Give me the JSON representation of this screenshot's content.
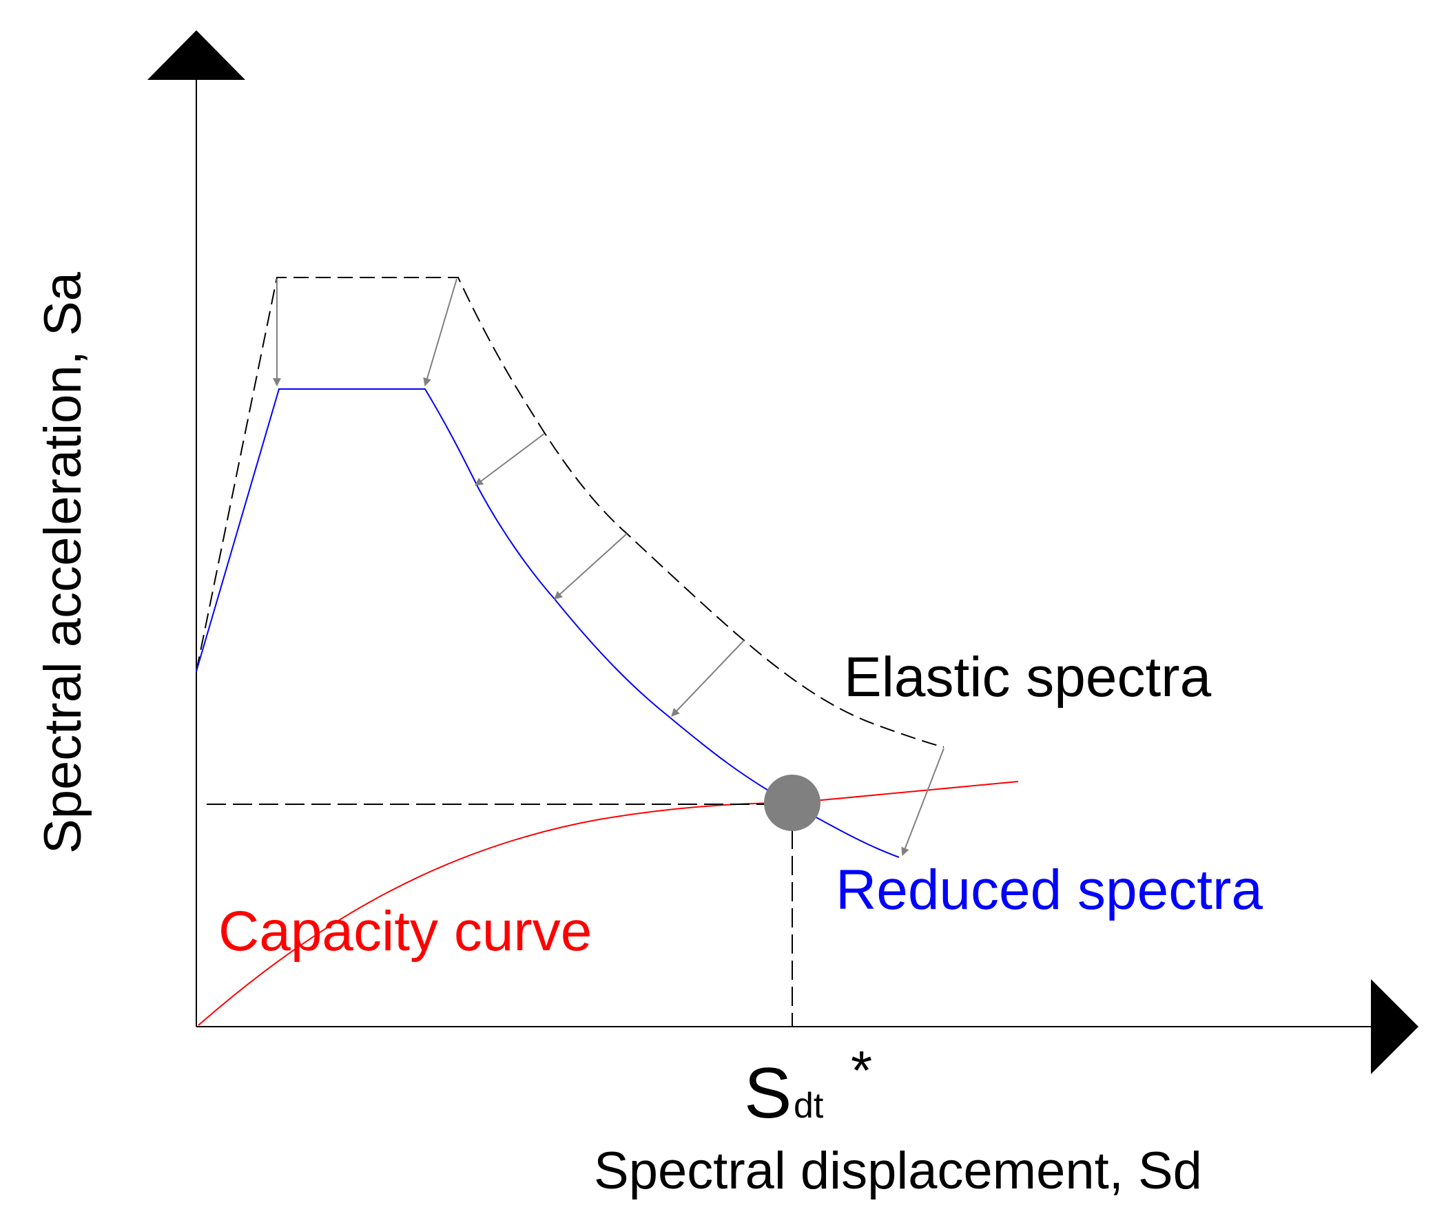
{
  "labels": {
    "y_axis": "Spectral acceleration, Sa",
    "x_axis": "Spectral displacement, Sd",
    "elastic": "Elastic spectra",
    "reduced": "Reduced spectra",
    "capacity": "Capacity curve",
    "target_main": "S",
    "target_sub": "dt",
    "target_star": "*"
  },
  "colors": {
    "elastic": "#000000",
    "reduced": "#0000ff",
    "capacity": "#ff0000",
    "arrows": "#808080",
    "point": "#808080",
    "axes": "#000000"
  }
}
